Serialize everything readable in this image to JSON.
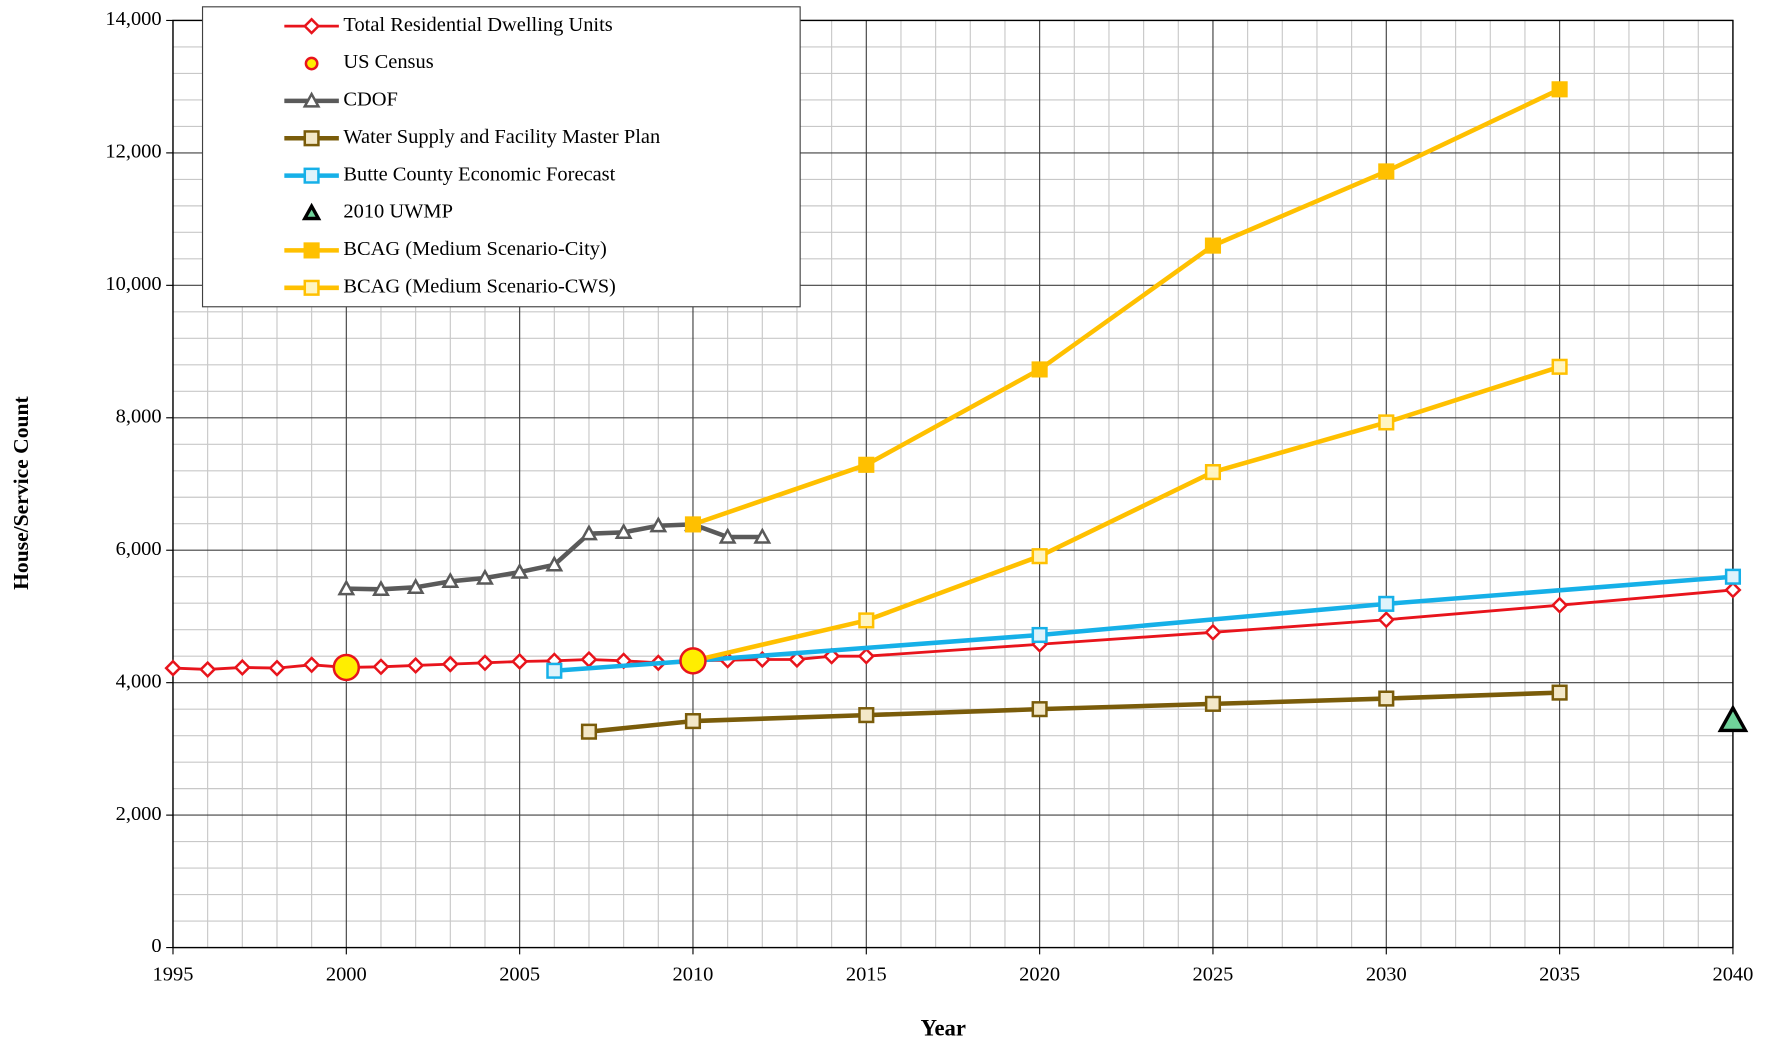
{
  "chart_data": {
    "type": "line",
    "x_label": "Year",
    "y_label": "House/Service Count",
    "xlim": [
      1995,
      2040
    ],
    "ylim": [
      0,
      14000
    ],
    "xticks": [
      1995,
      2000,
      2005,
      2010,
      2015,
      2020,
      2025,
      2030,
      2035,
      2040
    ],
    "yticks": [
      0,
      {
        "value": 2000,
        "label": "2,000"
      },
      {
        "value": 4000,
        "label": "4,000"
      },
      {
        "value": 6000,
        "label": "6,000"
      },
      {
        "value": 8000,
        "label": "8,000"
      },
      {
        "value": 10000,
        "label": "10,000"
      },
      {
        "value": 12000,
        "label": "12,000"
      },
      {
        "value": 14000,
        "label": "14,000"
      }
    ],
    "grid": true,
    "legend": "upper left",
    "series": [
      {
        "name": "Total Residential Dwelling Units",
        "color": "#e8141c",
        "marker": "diamond",
        "marker_fill": "#ffffff",
        "line": true,
        "x": [
          1995,
          1996,
          1997,
          1998,
          1999,
          2000,
          2001,
          2002,
          2003,
          2004,
          2005,
          2006,
          2007,
          2008,
          2009,
          2010,
          2011,
          2012,
          2013,
          2014,
          2015,
          2020,
          2025,
          2030,
          2035,
          2040
        ],
        "values": [
          4220,
          4200,
          4230,
          4220,
          4270,
          4230,
          4240,
          4260,
          4280,
          4300,
          4320,
          4330,
          4350,
          4330,
          4300,
          4330,
          4340,
          4350,
          4350,
          4400,
          4400,
          4580,
          4760,
          4950,
          5170,
          5400
        ]
      },
      {
        "name": "US Census",
        "color": "#e8141c",
        "marker": "circle",
        "marker_fill": "#ffee00",
        "line": false,
        "x": [
          2000,
          2010
        ],
        "values": [
          4230,
          4330
        ]
      },
      {
        "name": "CDOF",
        "color": "#5a5a5a",
        "marker": "triangle",
        "marker_fill": "#ffffff",
        "line": true,
        "x": [
          2000,
          2001,
          2002,
          2003,
          2004,
          2005,
          2006,
          2007,
          2008,
          2009,
          2010,
          2011,
          2012
        ],
        "values": [
          5420,
          5410,
          5440,
          5530,
          5580,
          5670,
          5780,
          6250,
          6270,
          6370,
          6390,
          6200,
          6200
        ]
      },
      {
        "name": "Water Supply and Facility Master Plan",
        "color": "#7a5c0a",
        "marker": "square",
        "marker_fill": "#f3e8c8",
        "line": true,
        "x": [
          2007,
          2010,
          2015,
          2020,
          2025,
          2030,
          2035
        ],
        "values": [
          3260,
          3420,
          3510,
          3600,
          3680,
          3760,
          3850
        ]
      },
      {
        "name": "Butte County Economic Forecast",
        "color": "#16b0e8",
        "marker": "square",
        "marker_fill": "#dff3fb",
        "line": true,
        "x": [
          2006,
          2010,
          2020,
          2030,
          2040
        ],
        "values": [
          4180,
          4330,
          4720,
          5190,
          5600
        ]
      },
      {
        "name": "2010 UWMP",
        "color": "#000000",
        "marker": "triangle",
        "marker_fill": "#6fd39a",
        "line": false,
        "x": [
          2040
        ],
        "values": [
          3430
        ]
      },
      {
        "name": "BCAG (Medium Scenario-City)",
        "color": "#ffc000",
        "marker": "square",
        "marker_fill": "#ffc000",
        "line": true,
        "x": [
          2010,
          2015,
          2020,
          2025,
          2030,
          2035
        ],
        "values": [
          6390,
          7290,
          8730,
          10600,
          11720,
          12960
        ]
      },
      {
        "name": "BCAG (Medium Scenario-CWS)",
        "color": "#ffc000",
        "marker": "square",
        "marker_fill": "#fff5c0",
        "line": true,
        "x": [
          2010,
          2015,
          2020,
          2025,
          2030,
          2035
        ],
        "values": [
          4330,
          4940,
          5910,
          7180,
          7930,
          8770
        ]
      }
    ]
  }
}
